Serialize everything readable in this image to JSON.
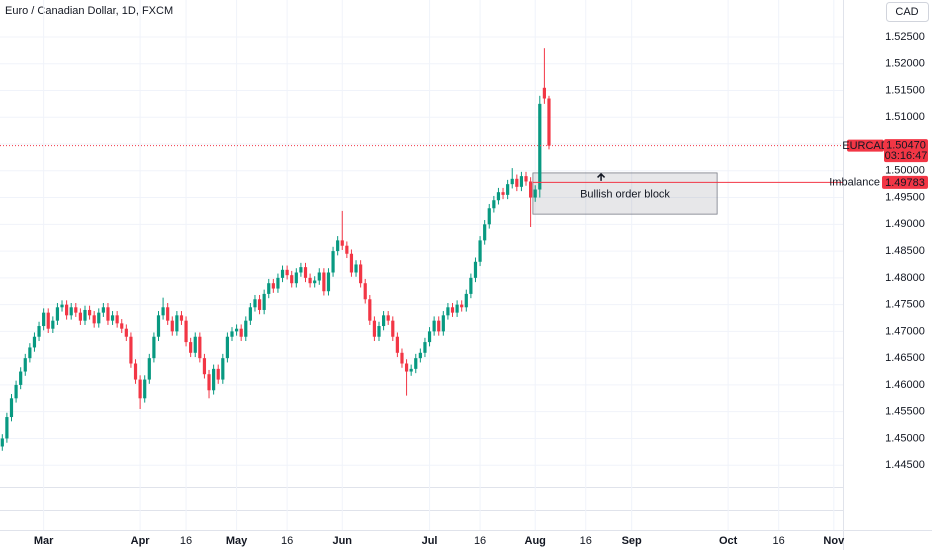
{
  "chart_data": {
    "type": "candlestick",
    "title": "Euro / Canadian Dollar, 1D, FXCM",
    "currency": "CAD",
    "up_color": "#089981",
    "down_color": "#f23645",
    "grid": true,
    "xlim": [
      -0.5,
      183
    ],
    "ylim": [
      1.4329,
      1.5319
    ],
    "xticks": [
      {
        "value": 9,
        "label": "Mar"
      },
      {
        "value": 30,
        "label": "Apr"
      },
      {
        "value": 40,
        "label": "16"
      },
      {
        "value": 51,
        "label": "May"
      },
      {
        "value": 62,
        "label": "16"
      },
      {
        "value": 74,
        "label": "Jun"
      },
      {
        "value": 93,
        "label": "Jul"
      },
      {
        "value": 104,
        "label": "16"
      },
      {
        "value": 116,
        "label": "Aug"
      },
      {
        "value": 127,
        "label": "16"
      },
      {
        "value": 137,
        "label": "Sep"
      },
      {
        "value": 158,
        "label": "Oct"
      },
      {
        "value": 169,
        "label": "16"
      },
      {
        "value": 181,
        "label": "Nov"
      }
    ],
    "yticks": [
      {
        "value": 1.525,
        "label": "1.52500"
      },
      {
        "value": 1.52,
        "label": "1.52000"
      },
      {
        "value": 1.515,
        "label": "1.51500"
      },
      {
        "value": 1.51,
        "label": "1.51000"
      },
      {
        "value": 1.505,
        "label": "1.50500"
      },
      {
        "value": 1.5,
        "label": "1.50000"
      },
      {
        "value": 1.495,
        "label": "1.49500"
      },
      {
        "value": 1.49,
        "label": "1.49000"
      },
      {
        "value": 1.485,
        "label": "1.48500"
      },
      {
        "value": 1.48,
        "label": "1.48000"
      },
      {
        "value": 1.475,
        "label": "1.47500"
      },
      {
        "value": 1.47,
        "label": "1.47000"
      },
      {
        "value": 1.465,
        "label": "1.46500"
      },
      {
        "value": 1.46,
        "label": "1.46000"
      },
      {
        "value": 1.455,
        "label": "1.45500"
      },
      {
        "value": 1.45,
        "label": "1.45000"
      },
      {
        "value": 1.445,
        "label": "1.44500"
      }
    ],
    "open": [
      1.4485,
      1.45,
      1.454,
      1.4575,
      1.46,
      1.4625,
      1.465,
      1.467,
      1.469,
      1.471,
      1.4735,
      1.4705,
      1.472,
      1.4745,
      1.475,
      1.473,
      1.4745,
      1.4735,
      1.472,
      1.474,
      1.473,
      1.4715,
      1.4735,
      1.4745,
      1.472,
      1.473,
      1.4715,
      1.4705,
      1.469,
      1.464,
      1.461,
      1.4575,
      1.461,
      1.465,
      1.469,
      1.473,
      1.4745,
      1.472,
      1.47,
      1.473,
      1.472,
      1.468,
      1.466,
      1.469,
      1.465,
      1.462,
      1.459,
      1.463,
      1.461,
      1.465,
      1.469,
      1.47,
      1.4705,
      1.469,
      1.472,
      1.4745,
      1.476,
      1.474,
      1.477,
      1.479,
      1.478,
      1.48,
      1.4815,
      1.4805,
      1.479,
      1.481,
      1.482,
      1.48,
      1.479,
      1.4795,
      1.481,
      1.4775,
      1.481,
      1.485,
      1.487,
      1.486,
      1.4845,
      1.481,
      1.4825,
      1.479,
      1.476,
      1.472,
      1.469,
      1.471,
      1.473,
      1.472,
      1.469,
      1.466,
      1.464,
      1.4625,
      1.463,
      1.465,
      1.466,
      1.468,
      1.47,
      1.472,
      1.47,
      1.473,
      1.4745,
      1.4735,
      1.475,
      1.4745,
      1.477,
      1.48,
      1.483,
      1.487,
      1.49,
      1.493,
      1.4945,
      1.496,
      1.4955,
      1.4975,
      1.4985,
      1.497,
      1.499,
      1.498,
      1.495,
      1.4965,
      1.5155,
      1.5135
    ],
    "high": [
      1.4508,
      1.4548,
      1.4583,
      1.4608,
      1.4633,
      1.4658,
      1.4678,
      1.4698,
      1.4718,
      1.4743,
      1.4743,
      1.4728,
      1.4753,
      1.4758,
      1.4758,
      1.4753,
      1.4753,
      1.4743,
      1.4748,
      1.4748,
      1.4738,
      1.4743,
      1.4753,
      1.4753,
      1.4738,
      1.4738,
      1.4723,
      1.4713,
      1.4698,
      1.4648,
      1.4618,
      1.4618,
      1.4658,
      1.4698,
      1.4738,
      1.4763,
      1.4753,
      1.4728,
      1.4738,
      1.4738,
      1.4728,
      1.4688,
      1.4698,
      1.4698,
      1.4658,
      1.4628,
      1.4638,
      1.4638,
      1.4658,
      1.4698,
      1.4708,
      1.4713,
      1.4713,
      1.4728,
      1.4753,
      1.4768,
      1.4768,
      1.4778,
      1.4798,
      1.4798,
      1.4808,
      1.4823,
      1.4823,
      1.4813,
      1.4818,
      1.4828,
      1.4828,
      1.4808,
      1.4803,
      1.4818,
      1.4818,
      1.4818,
      1.4858,
      1.4878,
      1.4925,
      1.4868,
      1.4853,
      1.4833,
      1.4833,
      1.4798,
      1.4768,
      1.4728,
      1.4718,
      1.4738,
      1.4738,
      1.4728,
      1.4698,
      1.4668,
      1.4648,
      1.4638,
      1.4658,
      1.4668,
      1.4688,
      1.4708,
      1.4728,
      1.4728,
      1.4738,
      1.4753,
      1.4753,
      1.4758,
      1.4758,
      1.4778,
      1.4808,
      1.4838,
      1.4878,
      1.4908,
      1.4938,
      1.4953,
      1.4968,
      1.4968,
      1.4983,
      1.5005,
      1.4993,
      1.4998,
      1.4998,
      1.4988,
      1.4973,
      1.514,
      1.5229,
      1.514
    ],
    "low": [
      1.4477,
      1.4492,
      1.4532,
      1.4567,
      1.4592,
      1.4617,
      1.4642,
      1.4662,
      1.4682,
      1.4702,
      1.4697,
      1.4697,
      1.4712,
      1.4737,
      1.4722,
      1.4722,
      1.4727,
      1.4712,
      1.4712,
      1.4722,
      1.4707,
      1.4707,
      1.4727,
      1.4712,
      1.4712,
      1.4707,
      1.4697,
      1.4682,
      1.4632,
      1.4602,
      1.4555,
      1.4567,
      1.4602,
      1.4642,
      1.4682,
      1.4722,
      1.4712,
      1.4692,
      1.4692,
      1.4712,
      1.4672,
      1.4652,
      1.4652,
      1.4642,
      1.4612,
      1.4575,
      1.4582,
      1.4602,
      1.4602,
      1.4642,
      1.4682,
      1.4692,
      1.4682,
      1.4682,
      1.4712,
      1.4737,
      1.4732,
      1.4732,
      1.4762,
      1.4772,
      1.4772,
      1.4792,
      1.4797,
      1.4782,
      1.4782,
      1.4802,
      1.4792,
      1.4782,
      1.4782,
      1.4787,
      1.4767,
      1.4767,
      1.4802,
      1.4842,
      1.4852,
      1.4837,
      1.4802,
      1.4802,
      1.4782,
      1.4752,
      1.4712,
      1.4682,
      1.4682,
      1.4702,
      1.4712,
      1.4682,
      1.4652,
      1.4632,
      1.458,
      1.4617,
      1.4622,
      1.4642,
      1.4652,
      1.4672,
      1.4692,
      1.4692,
      1.4692,
      1.4722,
      1.4727,
      1.4727,
      1.4737,
      1.4737,
      1.4762,
      1.4792,
      1.4822,
      1.4862,
      1.4892,
      1.4922,
      1.4937,
      1.4947,
      1.4947,
      1.4967,
      1.4962,
      1.4962,
      1.4972,
      1.4895,
      1.4942,
      1.495,
      1.5125,
      1.504
    ],
    "close": [
      1.45,
      1.454,
      1.4575,
      1.46,
      1.4625,
      1.465,
      1.467,
      1.469,
      1.471,
      1.4735,
      1.4705,
      1.472,
      1.4745,
      1.475,
      1.473,
      1.4745,
      1.4735,
      1.472,
      1.474,
      1.473,
      1.4715,
      1.4735,
      1.4745,
      1.472,
      1.473,
      1.4715,
      1.4705,
      1.469,
      1.464,
      1.461,
      1.4575,
      1.461,
      1.465,
      1.469,
      1.473,
      1.4745,
      1.472,
      1.47,
      1.473,
      1.472,
      1.468,
      1.466,
      1.469,
      1.465,
      1.462,
      1.459,
      1.463,
      1.461,
      1.465,
      1.469,
      1.47,
      1.4705,
      1.469,
      1.472,
      1.4745,
      1.476,
      1.474,
      1.477,
      1.479,
      1.478,
      1.48,
      1.4815,
      1.4805,
      1.479,
      1.481,
      1.482,
      1.48,
      1.479,
      1.4795,
      1.481,
      1.4775,
      1.481,
      1.485,
      1.487,
      1.486,
      1.4845,
      1.481,
      1.4825,
      1.479,
      1.476,
      1.472,
      1.469,
      1.471,
      1.473,
      1.472,
      1.469,
      1.466,
      1.464,
      1.4625,
      1.463,
      1.465,
      1.466,
      1.468,
      1.47,
      1.472,
      1.47,
      1.473,
      1.4745,
      1.4735,
      1.475,
      1.4745,
      1.477,
      1.48,
      1.483,
      1.487,
      1.49,
      1.493,
      1.4945,
      1.496,
      1.4955,
      1.4975,
      1.4985,
      1.497,
      1.499,
      1.498,
      1.495,
      1.4965,
      1.5125,
      1.5135,
      1.5047
    ],
    "last_price": {
      "symbol": "EURCAD",
      "value": 1.5047,
      "label": "1.50470",
      "countdown": "03:16:47"
    },
    "imbalance": {
      "text": "Imbalance",
      "value": 1.49783,
      "label": "1.49783",
      "start": 115.5
    },
    "order_block": {
      "text": "Bullish order block",
      "top": 1.4996,
      "bottom": 1.4919,
      "start": 115.5,
      "end": 155.6
    }
  }
}
